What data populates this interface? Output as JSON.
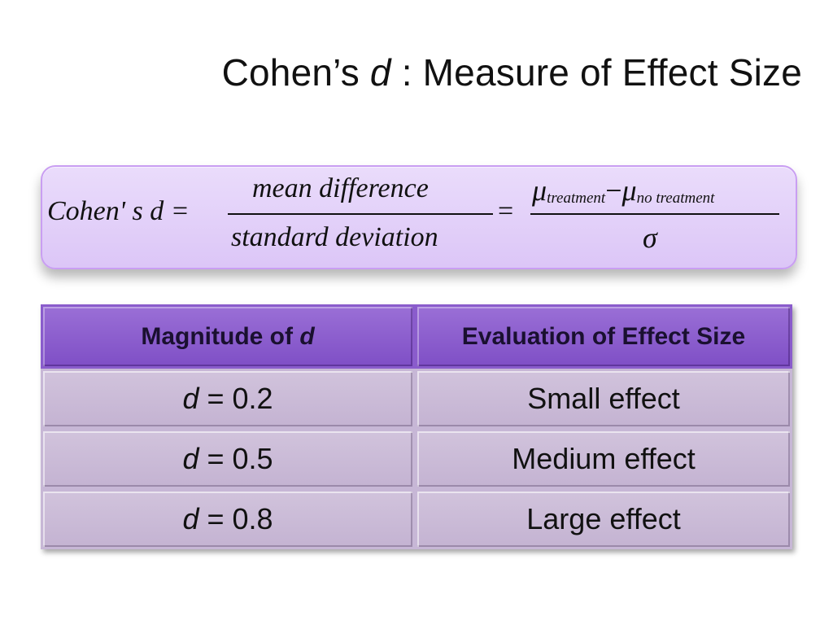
{
  "slide": {
    "title_prefix": "Cohen’s ",
    "title_var": "d",
    "title_suffix": " : Measure of Effect Size"
  },
  "formula": {
    "lhs": "Cohen' s d =",
    "numerator": "mean difference",
    "denominator": "standard  deviation",
    "equals": "=",
    "mu_symbol": "μ",
    "sub_treatment": "treatment",
    "minus": "−",
    "sub_no_treatment": "no treatment",
    "sigma": "σ"
  },
  "table": {
    "headers": [
      {
        "text": "Magnitude of ",
        "var": "d"
      },
      {
        "text": "Evaluation of Effect Size"
      }
    ],
    "rows": [
      {
        "var": "d",
        "value": " = 0.2",
        "evaluation": "Small effect"
      },
      {
        "var": "d",
        "value": " = 0.5",
        "evaluation": "Medium effect"
      },
      {
        "var": "d",
        "value": " = 0.8",
        "evaluation": "Large effect"
      }
    ]
  },
  "colors": {
    "header_bg": "#8a5ccc",
    "cell_bg": "#cbbcd8",
    "formula_bg": "#e4d3fa",
    "formula_border": "#c99ef2"
  }
}
